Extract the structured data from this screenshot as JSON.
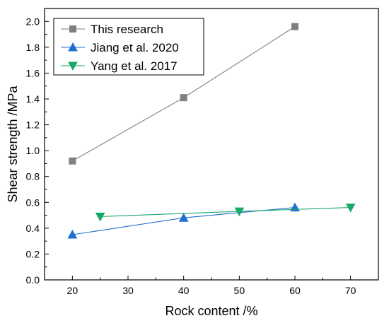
{
  "chart_data": {
    "type": "line",
    "title": "",
    "xlabel": "Rock content /%",
    "ylabel": "Shear strength /MPa",
    "xlim": [
      15,
      75
    ],
    "ylim": [
      0.0,
      2.1
    ],
    "xticks": [
      20,
      30,
      40,
      50,
      60,
      70
    ],
    "yticks": [
      0.0,
      0.2,
      0.4,
      0.6,
      0.8,
      1.0,
      1.2,
      1.4,
      1.6,
      1.8,
      2.0
    ],
    "xtick_labels": [
      "20",
      "30",
      "40",
      "50",
      "60",
      "70"
    ],
    "ytick_labels": [
      "0.0",
      "0.2",
      "0.4",
      "0.6",
      "0.8",
      "1.0",
      "1.2",
      "1.4",
      "1.6",
      "1.8",
      "2.0"
    ],
    "grid": false,
    "legend_position": "top-left",
    "series": [
      {
        "name": "This research",
        "marker": "square",
        "color": "#808080",
        "x": [
          20,
          40,
          60
        ],
        "y": [
          0.92,
          1.41,
          1.96
        ]
      },
      {
        "name": "Jiang et al. 2020",
        "marker": "triangle-up",
        "color": "#1f6fd0",
        "x": [
          20,
          40,
          60
        ],
        "y": [
          0.35,
          0.48,
          0.56
        ]
      },
      {
        "name": "Yang et al. 2017",
        "marker": "triangle-down",
        "color": "#1aa86a",
        "x": [
          25,
          50,
          70
        ],
        "y": [
          0.49,
          0.53,
          0.56
        ]
      }
    ]
  }
}
